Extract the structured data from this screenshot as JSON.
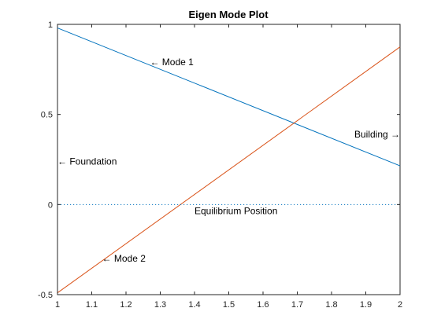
{
  "chart_data": {
    "type": "line",
    "title": "Eigen Mode Plot",
    "xlabel": "",
    "ylabel": "",
    "xlim": [
      1,
      2
    ],
    "ylim": [
      -0.5,
      1
    ],
    "xticks": [
      "1",
      "1.1",
      "1.2",
      "1.3",
      "1.4",
      "1.5",
      "1.6",
      "1.7",
      "1.8",
      "1.9",
      "2"
    ],
    "yticks": [
      "-0.5",
      "0",
      "0.5",
      "1"
    ],
    "grid": false,
    "series": [
      {
        "x": [
          1,
          2
        ],
        "y": [
          0.98,
          0.215
        ],
        "color": "#0072BD"
      },
      {
        "x": [
          1,
          2
        ],
        "y": [
          -0.49,
          0.875
        ],
        "color": "#D95319"
      },
      {
        "x": [
          1,
          2
        ],
        "y": [
          0,
          0
        ],
        "color": "#0072BD",
        "style": "dotted"
      }
    ],
    "annotations": [
      {
        "text": "← Mode 1",
        "x": 1.27,
        "y": 0.79,
        "anchor": "start"
      },
      {
        "text": "← Mode 2",
        "x": 1.13,
        "y": -0.3,
        "anchor": "start"
      },
      {
        "text": "← Foundation",
        "x": 1.0,
        "y": 0.24,
        "anchor": "start"
      },
      {
        "text": "Building →",
        "x": 2.0,
        "y": 0.39,
        "anchor": "end"
      },
      {
        "text": "Equilibrium Position",
        "x": 1.4,
        "y": -0.035,
        "anchor": "start"
      }
    ]
  }
}
